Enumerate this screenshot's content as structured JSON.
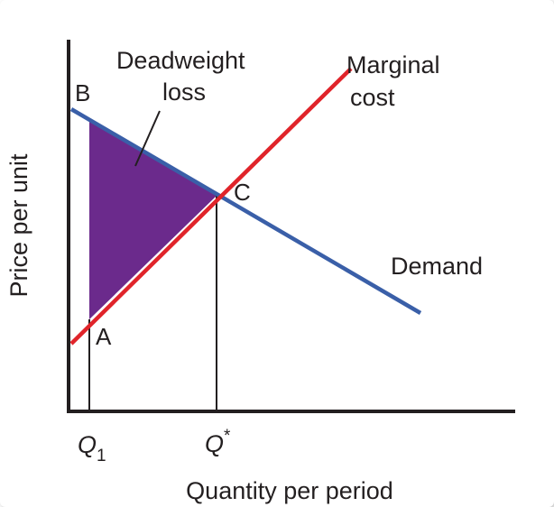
{
  "diagram": {
    "ylabel": "Price per unit",
    "xlabel": "Quantity per period",
    "region_label": [
      "Deadweight",
      "loss"
    ],
    "curves": [
      {
        "name": "demand",
        "label": "Demand",
        "color": "#3a5fa8"
      },
      {
        "name": "marginal-cost",
        "label": [
          "Marginal",
          "cost"
        ],
        "color": "#e0242a"
      }
    ],
    "points": {
      "a": "A",
      "b": "B",
      "c": "C"
    },
    "x_ticks": {
      "q1": {
        "base": "Q",
        "sub": "1"
      },
      "qstar": {
        "base": "Q",
        "sup": "*"
      }
    },
    "fill_color": "#6b2a8c"
  }
}
